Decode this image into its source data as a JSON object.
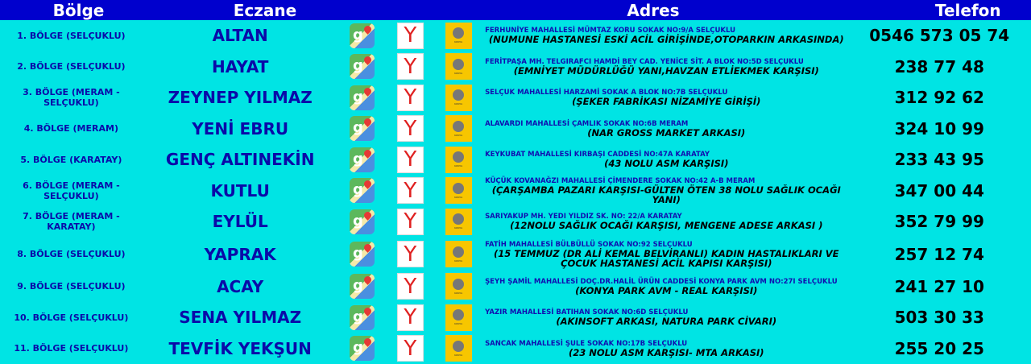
{
  "header": {
    "bolge": "Bölge",
    "eczane": "Eczane",
    "adres": "Adres",
    "telefon": "Telefon"
  },
  "colors": {
    "header_bg": "#0000cd",
    "page_bg": "#00e4e4",
    "text_blue": "#0a0aa8"
  },
  "icons": {
    "map": "google-maps-icon",
    "yandex": "yandex-icon",
    "belediye": "konya-buyuksehir-logo"
  },
  "logo_text": "KONYA BÜYÜKŞEHİR BELEDİYESİ",
  "rows": [
    {
      "bolge": "1. BÖLGE (SELÇUKLU)",
      "eczane": "ALTAN",
      "adres": "FERHUNİYE MAHALLESİ MÜMTAZ KORU SOKAK NO:9/A SELÇUKLU",
      "tarif": "(NUMUNE HASTANESİ ESKİ ACİL GİRİŞİNDE,OTOPARKIN ARKASINDA)",
      "telefon": "0546 573 05 74"
    },
    {
      "bolge": "2. BÖLGE (SELÇUKLU)",
      "eczane": "HAYAT",
      "adres": "FERİTPAŞA MH. TELGIRAFCI HAMDİ BEY CAD. YENİCE SİT. A BLOK NO:5D SELÇUKLU",
      "tarif": "(EMNİYET MÜDÜRLÜĞÜ YANI,HAVZAN ETLİEKMEK KARŞISI)",
      "telefon": "238 77 48"
    },
    {
      "bolge": "3. BÖLGE (MERAM - SELÇUKLU)",
      "eczane": "ZEYNEP YILMAZ",
      "adres": "SELÇUK MAHALLESİ HARZAMİ SOKAK A BLOK NO:7B SELÇUKLU",
      "tarif": "(ŞEKER FABRİKASI NİZAMİYE GİRİŞİ)",
      "telefon": "312 92 62"
    },
    {
      "bolge": "4. BÖLGE (MERAM)",
      "eczane": "YENİ EBRU",
      "adres": "ALAVARDI MAHALLESİ ÇAMLIK SOKAK NO:6B MERAM",
      "tarif": "(NAR GROSS MARKET ARKASI)",
      "telefon": "324 10 99"
    },
    {
      "bolge": "5. BÖLGE (KARATAY)",
      "eczane": "GENÇ ALTINEKİN",
      "adres": "KEYKUBAT MAHALLESİ KIRBAŞI CADDESİ NO:47A KARATAY",
      "tarif": "(43 NOLU ASM KARŞISI)",
      "telefon": "233 43 95"
    },
    {
      "bolge": "6. BÖLGE (MERAM - SELÇUKLU)",
      "eczane": "KUTLU",
      "adres": "KÜÇÜK KOVANAĞZI MAHALLESİ ÇİMENDERE SOKAK NO:42 A-B MERAM",
      "tarif": "(ÇARŞAMBA PAZARI KARŞISI-GÜLTEN ÖTEN 38 NOLU SAĞLIK OCAĞI YANI)",
      "telefon": "347 00 44"
    },
    {
      "bolge": "7. BÖLGE (MERAM - KARATAY)",
      "eczane": "EYLÜL",
      "adres": "SARIYAKUP MH. YEDI YILDIZ SK. NO: 22/A KARATAY",
      "tarif": "(12NOLU SAĞLIK OCAĞI KARŞISI, MENGENE ADESE ARKASI )",
      "telefon": "352 79 99"
    },
    {
      "bolge": "8. BÖLGE (SELÇUKLU)",
      "eczane": "YAPRAK",
      "adres": "FATİH MAHALLESİ BÜLBÜLLÜ SOKAK NO:92 SELÇUKLU",
      "tarif": "(15 TEMMUZ (DR ALİ KEMAL BELVİRANLI) KADIN HASTALIKLARI VE ÇOCUK HASTANESİ ACİL KAPISI KARŞISI)",
      "telefon": "257 12 74"
    },
    {
      "bolge": "9. BÖLGE (SELÇUKLU)",
      "eczane": "ACAY",
      "adres": "ŞEYH ŞAMİL MAHALLESİ DOÇ.DR.HALİL ÜRÜN CADDESİ KONYA PARK AVM NO:27I SELÇUKLU",
      "tarif": "(KONYA PARK AVM - REAL KARŞISI)",
      "telefon": "241 27 10"
    },
    {
      "bolge": "10. BÖLGE (SELÇUKLU)",
      "eczane": "SENA YILMAZ",
      "adres": "YAZIR MAHALLESİ BATIHAN SOKAK NO:6D SELÇUKLU",
      "tarif": "(AKINSOFT ARKASI, NATURA PARK CİVARI)",
      "telefon": "503 30 33"
    },
    {
      "bolge": "11. BÖLGE (SELÇUKLU)",
      "eczane": "TEVFİK YEKŞUN",
      "adres": "SANCAK MAHALLESİ ŞULE SOKAK NO:17B SELÇUKLU",
      "tarif": "(23 NOLU ASM KARŞISI- MTA ARKASI)",
      "telefon": "255 20 25"
    }
  ]
}
